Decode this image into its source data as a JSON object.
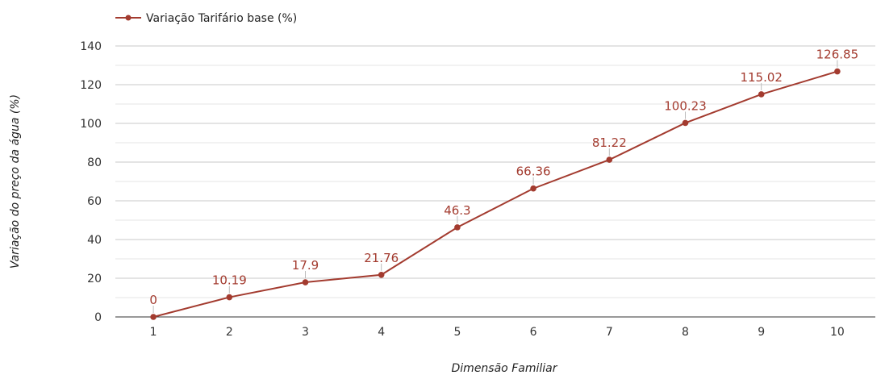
{
  "chart_data": {
    "type": "line",
    "title": "",
    "xlabel": "Dimensão Familiar",
    "ylabel": "Variação do preço da água (%)",
    "categories": [
      "1",
      "2",
      "3",
      "4",
      "5",
      "6",
      "7",
      "8",
      "9",
      "10"
    ],
    "series": [
      {
        "name": "Variação Tarifário base (%)",
        "values": [
          0,
          10.19,
          17.9,
          21.76,
          46.3,
          66.36,
          81.22,
          100.23,
          115.02,
          126.85
        ],
        "labels": [
          "0",
          "10.19",
          "17.9",
          "21.76",
          "46.3",
          "66.36",
          "81.22",
          "100.23",
          "115.02",
          "126.85"
        ],
        "color": "#a33b2f"
      }
    ],
    "ylim": [
      0,
      140
    ],
    "yticks": [
      0,
      20,
      40,
      60,
      80,
      100,
      120,
      140
    ],
    "grid": true,
    "legend": "top-left"
  }
}
